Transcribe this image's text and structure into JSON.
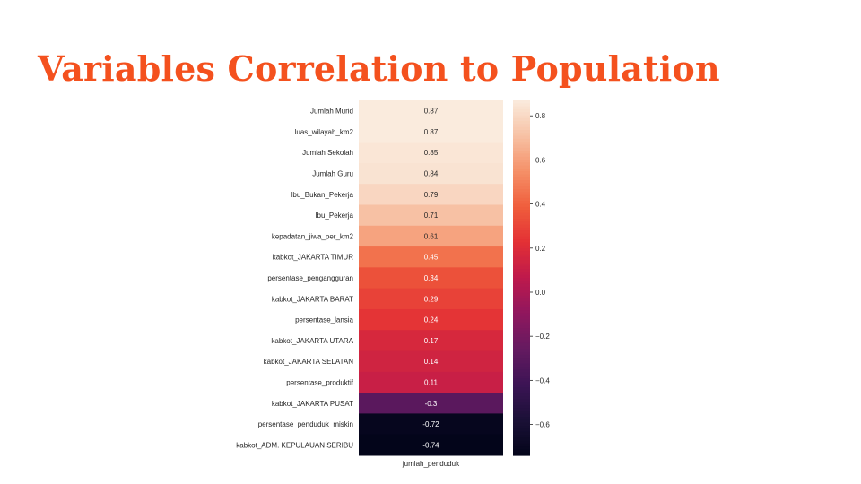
{
  "slide": {
    "title": "Variables Correlation to Population",
    "title_color": "#f4511e"
  },
  "chart_data": {
    "type": "heatmap",
    "column": "jumlah_penduduk",
    "rows": [
      {
        "label": "Jumlah Murid",
        "value": 0.87,
        "text": "0.87"
      },
      {
        "label": "luas_wilayah_km2",
        "value": 0.87,
        "text": "0.87"
      },
      {
        "label": "Jumlah Sekolah",
        "value": 0.85,
        "text": "0.85"
      },
      {
        "label": "Jumlah Guru",
        "value": 0.84,
        "text": "0.84"
      },
      {
        "label": "Ibu_Bukan_Pekerja",
        "value": 0.79,
        "text": "0.79"
      },
      {
        "label": "Ibu_Pekerja",
        "value": 0.71,
        "text": "0.71"
      },
      {
        "label": "kepadatan_jiwa_per_km2",
        "value": 0.61,
        "text": "0.61"
      },
      {
        "label": "kabkot_JAKARTA TIMUR",
        "value": 0.45,
        "text": "0.45"
      },
      {
        "label": "persentase_pengangguran",
        "value": 0.34,
        "text": "0.34"
      },
      {
        "label": "kabkot_JAKARTA BARAT",
        "value": 0.29,
        "text": "0.29"
      },
      {
        "label": "persentase_lansia",
        "value": 0.24,
        "text": "0.24"
      },
      {
        "label": "kabkot_JAKARTA UTARA",
        "value": 0.17,
        "text": "0.17"
      },
      {
        "label": "kabkot_JAKARTA SELATAN",
        "value": 0.14,
        "text": "0.14"
      },
      {
        "label": "persentase_produktif",
        "value": 0.11,
        "text": "0.11"
      },
      {
        "label": "kabkot_JAKARTA PUSAT",
        "value": -0.3,
        "text": "-0.3"
      },
      {
        "label": "persentase_penduduk_miskin",
        "value": -0.72,
        "text": "-0.72"
      },
      {
        "label": "kabkot_ADM. KEPULAUAN SERIBU",
        "value": -0.74,
        "text": "-0.74"
      }
    ],
    "colorbar": {
      "range": [
        -0.74,
        0.87
      ],
      "ticks": [
        0.8,
        0.6,
        0.4,
        0.2,
        0.0,
        -0.2,
        -0.4,
        -0.6
      ],
      "tick_labels": [
        "0.8",
        "0.6",
        "0.4",
        "0.2",
        "0.0",
        "−0.2",
        "−0.4",
        "−0.6"
      ],
      "colormap": "rocket"
    }
  }
}
